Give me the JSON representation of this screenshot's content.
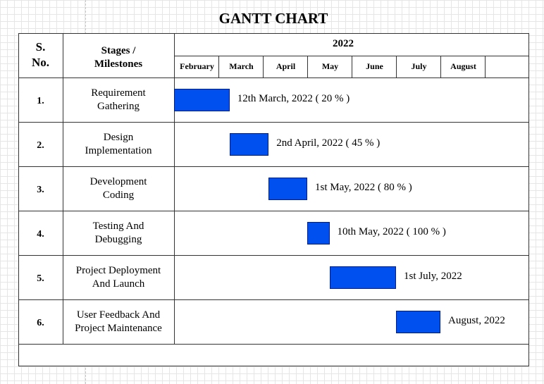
{
  "title": "GANTT CHART",
  "table": {
    "sno_header": [
      "S.",
      "No."
    ],
    "stage_header": [
      "Stages /",
      "Milestones"
    ],
    "year": "2022",
    "months": [
      "February",
      "March",
      "April",
      "May",
      "June",
      "July",
      "August"
    ]
  },
  "colors": {
    "bar_fill": "#0050ef",
    "bar_border": "#001d8a",
    "grid_line": "#333333"
  },
  "chart_data": {
    "type": "gantt",
    "title": "GANTT CHART",
    "year": "2022",
    "x_months": [
      "February",
      "March",
      "April",
      "May",
      "June",
      "July",
      "August"
    ],
    "tasks": [
      {
        "sno": "1.",
        "stage": [
          "Requirement",
          "Gathering"
        ],
        "start_month": 0.0,
        "end_month": 1.25,
        "label": "12th March, 2022 ( 20 % )"
      },
      {
        "sno": "2.",
        "stage": [
          "Design",
          "Implementation"
        ],
        "start_month": 1.25,
        "end_month": 2.13,
        "label": "2nd April, 2022 ( 45 % )"
      },
      {
        "sno": "3.",
        "stage": [
          "Development",
          "Coding"
        ],
        "start_month": 2.13,
        "end_month": 3.0,
        "label": "1st May, 2022 ( 80 % )"
      },
      {
        "sno": "4.",
        "stage": [
          "Testing And",
          "Debugging"
        ],
        "start_month": 3.0,
        "end_month": 3.5,
        "label": "10th May, 2022 ( 100 % )"
      },
      {
        "sno": "5.",
        "stage": [
          "Project Deployment",
          "And Launch"
        ],
        "start_month": 3.5,
        "end_month": 5.0,
        "label": "1st July, 2022"
      },
      {
        "sno": "6.",
        "stage": [
          "User Feedback And",
          "Project Maintenance"
        ],
        "start_month": 5.0,
        "end_month": 6.0,
        "label": "August, 2022"
      }
    ]
  }
}
